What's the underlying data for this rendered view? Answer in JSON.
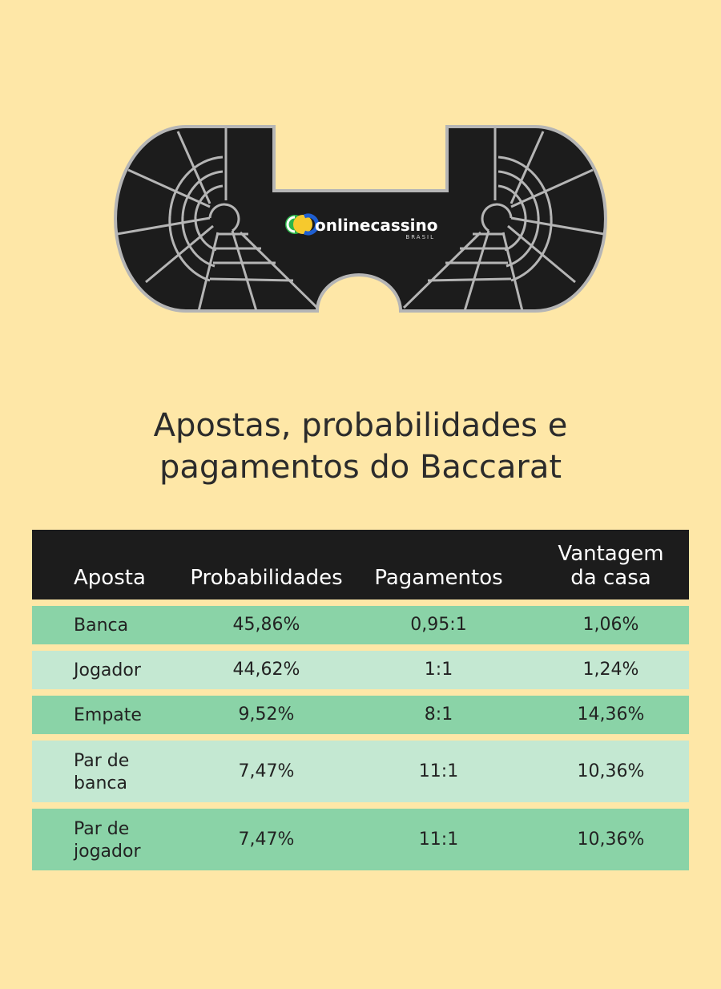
{
  "logo": {
    "name": "onlinecassino",
    "sub": "BRASIL"
  },
  "title": {
    "line1": "Apostas, probabilidades e",
    "line2": "pagamentos do Baccarat"
  },
  "table": {
    "headers": {
      "aposta": "Aposta",
      "probabilidades": "Probabilidades",
      "pagamentos": "Pagamentos",
      "vantagem_line1": "Vantagem",
      "vantagem_line2": "da casa"
    },
    "rows": [
      {
        "aposta_l1": "Banca",
        "aposta_l2": "",
        "prob": "45,86%",
        "pag": "0,95:1",
        "vant": "1,06%"
      },
      {
        "aposta_l1": "Jogador",
        "aposta_l2": "",
        "prob": "44,62%",
        "pag": "1:1",
        "vant": "1,24%"
      },
      {
        "aposta_l1": "Empate",
        "aposta_l2": "",
        "prob": "9,52%",
        "pag": "8:1",
        "vant": "14,36%"
      },
      {
        "aposta_l1": "Par de",
        "aposta_l2": "banca",
        "prob": "7,47%",
        "pag": "11:1",
        "vant": "10,36%"
      },
      {
        "aposta_l1": "Par de",
        "aposta_l2": "jogador",
        "prob": "7,47%",
        "pag": "11:1",
        "vant": "10,36%"
      }
    ]
  },
  "colors": {
    "background": "#fee7a7",
    "table_felt": "#1c1c1c",
    "row_dark": "#8ad3a7",
    "row_light": "#c4e8d2"
  }
}
